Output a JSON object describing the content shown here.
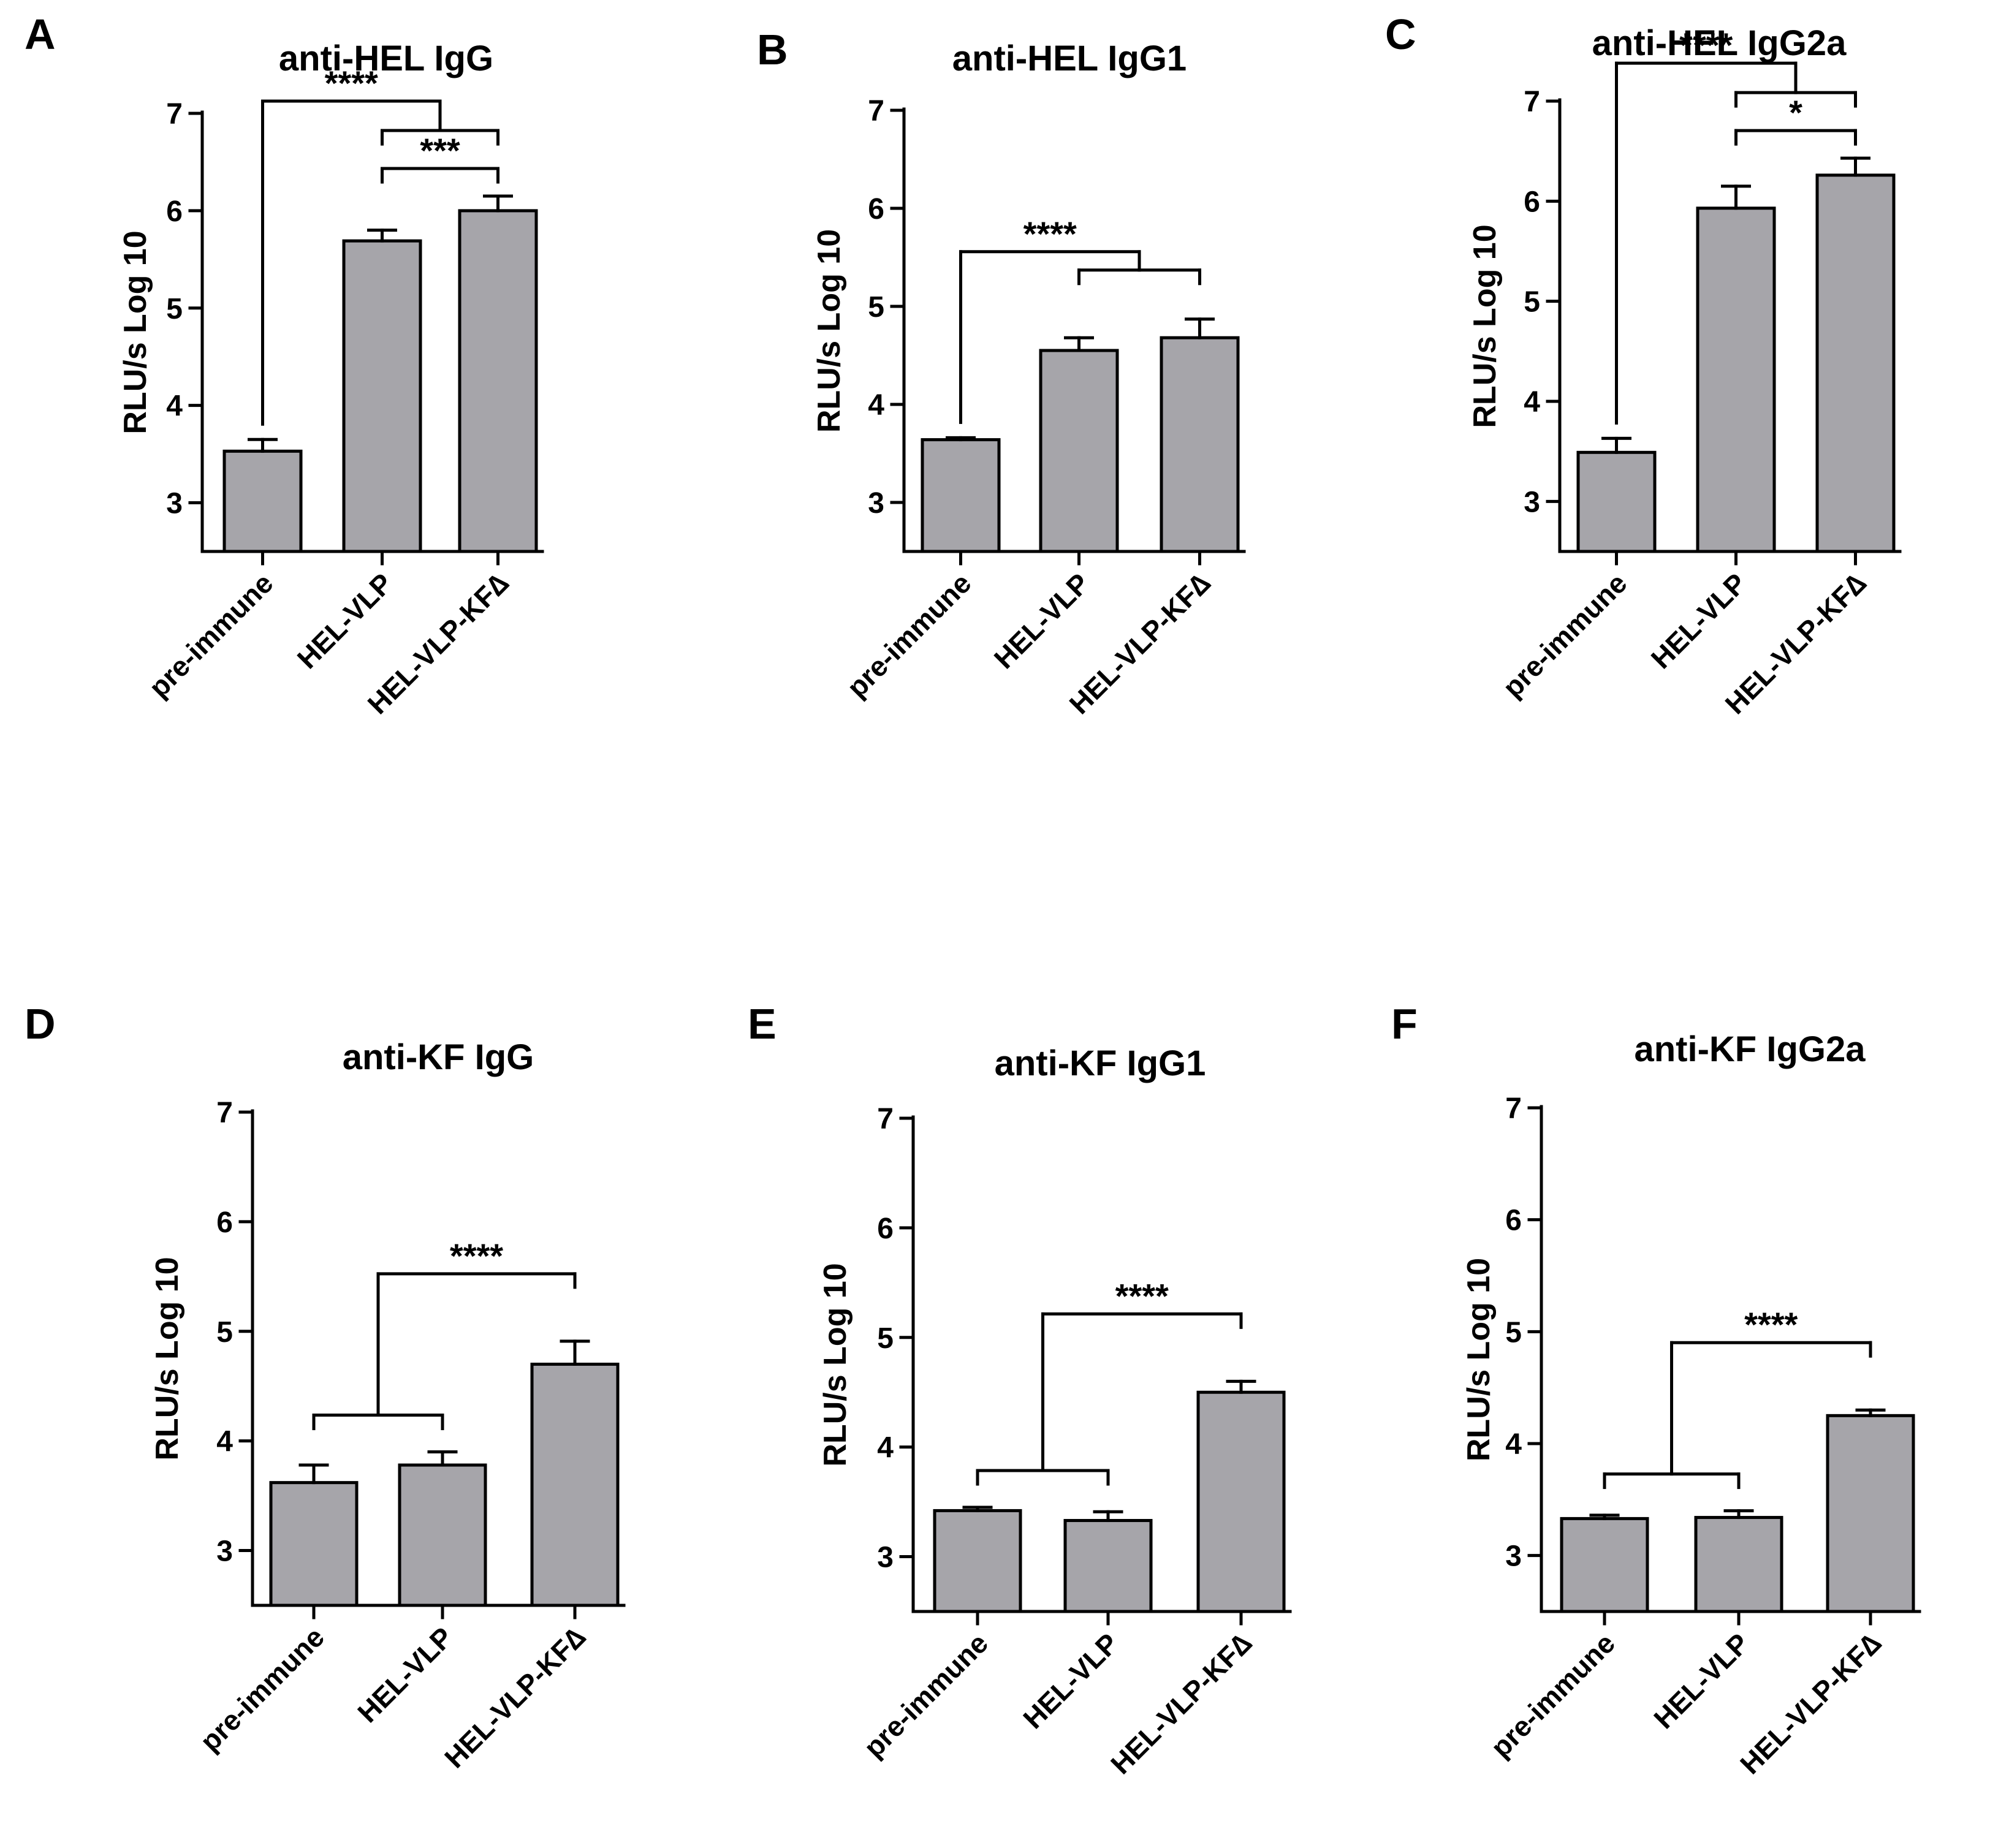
{
  "figure": {
    "colors": {
      "bar_fill": "#a6a5aa",
      "stroke": "#000000",
      "background": "#ffffff"
    }
  },
  "chart_data": [
    {
      "panel": "A",
      "type": "bar",
      "title": "anti-HEL IgG",
      "categories": [
        "pre-immune",
        "HEL-VLP",
        "HEL-VLP-KF∆"
      ],
      "values": [
        3.53,
        5.69,
        6.0
      ],
      "errors": [
        0.12,
        0.11,
        0.15
      ],
      "ylabel": "RLU/s  Log 10",
      "ylim": [
        2.5,
        7
      ],
      "yticks": [
        "3",
        "4",
        "5",
        "6",
        "7"
      ],
      "significance": [
        {
          "type": "group",
          "from": [
            0
          ],
          "to": [
            1,
            2
          ],
          "label": "****"
        },
        {
          "type": "pair",
          "from": [
            1
          ],
          "to": [
            2
          ],
          "label": "***"
        }
      ]
    },
    {
      "panel": "B",
      "type": "bar",
      "title": "anti-HEL IgG1",
      "categories": [
        "pre-immune",
        "HEL-VLP",
        "HEL-VLP-KF∆"
      ],
      "values": [
        3.64,
        4.55,
        4.68
      ],
      "errors": [
        0.02,
        0.13,
        0.19
      ],
      "ylabel": "RLU/s  Log 10",
      "ylim": [
        2.5,
        7
      ],
      "yticks": [
        "3",
        "4",
        "5",
        "6",
        "7"
      ],
      "significance": [
        {
          "type": "group",
          "from": [
            0
          ],
          "to": [
            1,
            2
          ],
          "label": "****"
        }
      ]
    },
    {
      "panel": "C",
      "type": "bar",
      "title": "anti-HEL IgG2a",
      "categories": [
        "pre-immune",
        "HEL-VLP",
        "HEL-VLP-KF∆"
      ],
      "values": [
        3.49,
        5.93,
        6.26
      ],
      "errors": [
        0.14,
        0.22,
        0.17
      ],
      "ylabel": "RLU/s  Log 10",
      "ylim": [
        2.5,
        7
      ],
      "yticks": [
        "3",
        "4",
        "5",
        "6",
        "7"
      ],
      "significance": [
        {
          "type": "group",
          "from": [
            0
          ],
          "to": [
            1,
            2
          ],
          "label": "****"
        },
        {
          "type": "pair",
          "from": [
            1
          ],
          "to": [
            2
          ],
          "label": "*"
        }
      ]
    },
    {
      "panel": "D",
      "type": "bar",
      "title": "anti-KF IgG",
      "categories": [
        "pre-immune",
        "HEL-VLP",
        "HEL-VLP-KF∆"
      ],
      "values": [
        3.62,
        3.78,
        4.7
      ],
      "errors": [
        0.16,
        0.12,
        0.21
      ],
      "ylabel": "RLU/s  Log 10",
      "ylim": [
        2.5,
        7
      ],
      "yticks": [
        "3",
        "4",
        "5",
        "6",
        "7"
      ],
      "significance": [
        {
          "type": "group",
          "from": [
            0,
            1
          ],
          "to": [
            2
          ],
          "label": "****"
        }
      ]
    },
    {
      "panel": "E",
      "type": "bar",
      "title": "anti-KF IgG1",
      "categories": [
        "pre-immune",
        "HEL-VLP",
        "HEL-VLP-KF∆"
      ],
      "values": [
        3.42,
        3.33,
        4.5
      ],
      "errors": [
        0.03,
        0.08,
        0.1
      ],
      "ylabel": "RLU/s  Log 10",
      "ylim": [
        2.5,
        7
      ],
      "yticks": [
        "3",
        "4",
        "5",
        "6",
        "7"
      ],
      "significance": [
        {
          "type": "group",
          "from": [
            0,
            1
          ],
          "to": [
            2
          ],
          "label": "****"
        }
      ]
    },
    {
      "panel": "F",
      "type": "bar",
      "title": "anti-KF IgG2a",
      "categories": [
        "pre-immune",
        "HEL-VLP",
        "HEL-VLP-KF∆"
      ],
      "values": [
        3.33,
        3.34,
        4.25
      ],
      "errors": [
        0.03,
        0.06,
        0.05
      ],
      "ylabel": "RLU/s  Log 10",
      "ylim": [
        2.5,
        7
      ],
      "yticks": [
        "3",
        "4",
        "5",
        "6",
        "7"
      ],
      "significance": [
        {
          "type": "group",
          "from": [
            0,
            1
          ],
          "to": [
            2
          ],
          "label": "****"
        }
      ]
    }
  ]
}
